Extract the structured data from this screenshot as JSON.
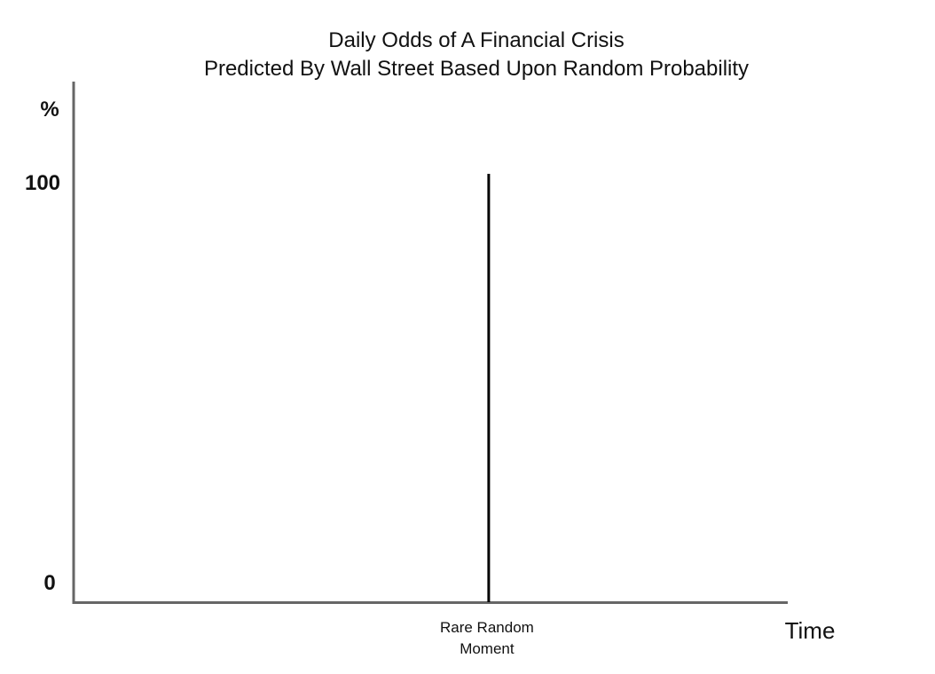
{
  "chart_data": {
    "type": "bar",
    "title": [
      "Daily Odds of A Financial Crisis",
      "Predicted By Wall Street Based Upon Random Probability"
    ],
    "ylabel": "%",
    "xlabel": "Time",
    "y_ticks": [
      {
        "value": 100,
        "label": "100"
      },
      {
        "value": 0,
        "label": "0"
      }
    ],
    "ylim": [
      0,
      100
    ],
    "x_ticks": [],
    "spikes": [
      {
        "x_fraction": 0.58,
        "value": 100,
        "label": [
          "Rare Random",
          "Moment"
        ]
      }
    ],
    "grid": false,
    "legend": "none",
    "colors": {
      "axis": "#666666",
      "spike": "#000000",
      "text": "#111111"
    }
  }
}
